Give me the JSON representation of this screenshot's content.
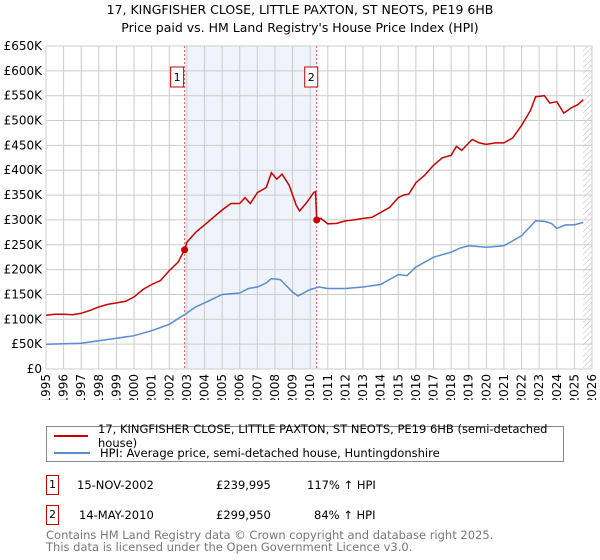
{
  "title": {
    "line1": "17, KINGFISHER CLOSE, LITTLE PAXTON, ST NEOTS, PE19 6HB",
    "line2": "Price paid vs. HM Land Registry's House Price Index (HPI)"
  },
  "chart_data": {
    "type": "line",
    "xlim": [
      1995,
      2026
    ],
    "ylim": [
      0,
      650000
    ],
    "yticks": [
      0,
      50000,
      100000,
      150000,
      200000,
      250000,
      300000,
      350000,
      400000,
      450000,
      500000,
      550000,
      600000,
      650000
    ],
    "ytick_labels": [
      "£0",
      "£50K",
      "£100K",
      "£150K",
      "£200K",
      "£250K",
      "£300K",
      "£350K",
      "£400K",
      "£450K",
      "£500K",
      "£550K",
      "£600K",
      "£650K"
    ],
    "xtick_labels": [
      "1995",
      "1996",
      "1997",
      "1998",
      "1999",
      "2000",
      "2001",
      "2002",
      "2003",
      "2004",
      "2005",
      "2006",
      "2007",
      "2008",
      "2009",
      "2010",
      "2011",
      "2012",
      "2013",
      "2014",
      "2015",
      "2016",
      "2017",
      "2018",
      "2019",
      "2020",
      "2021",
      "2022",
      "2023",
      "2024",
      "2025",
      "2026"
    ],
    "grid": true,
    "shaded_period": [
      2002.87,
      2010.37
    ],
    "future_hatch_from": 2025.5,
    "series": [
      {
        "name": "17, KINGFISHER CLOSE, LITTLE PAXTON, ST NEOTS, PE19 6HB (semi-detached house)",
        "color": "#cc0000",
        "x": [
          1995,
          1995.5,
          1996,
          1996.5,
          1997,
          1997.5,
          1998,
          1998.5,
          1999,
          1999.5,
          2000,
          2000.5,
          2001,
          2001.5,
          2002,
          2002.5,
          2002.87,
          2003,
          2003.5,
          2004,
          2004.5,
          2005,
          2005.5,
          2006,
          2006.3,
          2006.6,
          2007,
          2007.5,
          2007.8,
          2008.1,
          2008.4,
          2008.8,
          2009.2,
          2009.4,
          2009.8,
          2010.2,
          2010.3,
          2010.37,
          2010.6,
          2011,
          2011.5,
          2012,
          2012.5,
          2013,
          2013.5,
          2014,
          2014.5,
          2015,
          2015.3,
          2015.6,
          2016,
          2016.5,
          2017,
          2017.5,
          2018,
          2018.3,
          2018.6,
          2019.2,
          2019.6,
          2020,
          2020.5,
          2021,
          2021.5,
          2022,
          2022.5,
          2022.8,
          2023.3,
          2023.6,
          2024,
          2024.4,
          2024.8,
          2025.2,
          2025.5
        ],
        "y": [
          108000,
          110000,
          110000,
          109000,
          112000,
          118000,
          125000,
          130000,
          133000,
          136000,
          145000,
          160000,
          170000,
          178000,
          198000,
          215000,
          239995,
          255000,
          275000,
          290000,
          305000,
          320000,
          333000,
          333000,
          345000,
          333000,
          355000,
          365000,
          395000,
          382000,
          392000,
          370000,
          330000,
          318000,
          335000,
          355000,
          357000,
          299950,
          303000,
          292000,
          293000,
          298000,
          300000,
          303000,
          305000,
          315000,
          325000,
          345000,
          350000,
          352000,
          375000,
          390000,
          410000,
          425000,
          430000,
          448000,
          440000,
          462000,
          455000,
          452000,
          455000,
          455000,
          465000,
          490000,
          520000,
          548000,
          550000,
          535000,
          538000,
          515000,
          525000,
          532000,
          542000
        ]
      },
      {
        "name": "HPI: Average price, semi-detached house, Huntingdonshire",
        "color": "#5b8bd0",
        "x": [
          1995,
          1996,
          1997,
          1998,
          1999,
          2000,
          2001,
          2002,
          2002.9,
          2003.5,
          2004,
          2005,
          2006,
          2006.5,
          2007,
          2007.5,
          2007.8,
          2008.3,
          2009,
          2009.3,
          2010,
          2010.5,
          2011,
          2012,
          2013,
          2014,
          2015,
          2015.5,
          2016,
          2017,
          2018,
          2018.5,
          2019,
          2020,
          2021,
          2022,
          2022.8,
          2023.3,
          2023.7,
          2024,
          2024.5,
          2025,
          2025.5
        ],
        "y": [
          50000,
          51000,
          52000,
          57000,
          62000,
          67000,
          77000,
          90000,
          110000,
          125000,
          133000,
          150000,
          153000,
          162000,
          165000,
          173000,
          182000,
          180000,
          155000,
          147000,
          160000,
          165000,
          162000,
          162000,
          165000,
          170000,
          190000,
          188000,
          205000,
          225000,
          235000,
          243000,
          248000,
          245000,
          248000,
          268000,
          298000,
          297000,
          293000,
          283000,
          290000,
          290000,
          295000
        ]
      }
    ],
    "sales": [
      {
        "label": "1",
        "x": 2002.87,
        "y": 239995
      },
      {
        "label": "2",
        "x": 2010.37,
        "y": 299950
      }
    ]
  },
  "legend": {
    "property": "17, KINGFISHER CLOSE, LITTLE PAXTON, ST NEOTS, PE19 6HB (semi-detached house)",
    "hpi": "HPI: Average price, semi-detached house, Huntingdonshire"
  },
  "transactions": [
    {
      "num": "1",
      "date": "15-NOV-2002",
      "price": "£239,995",
      "hpi": "117% ↑ HPI"
    },
    {
      "num": "2",
      "date": "14-MAY-2010",
      "price": "£299,950",
      "hpi": "84% ↑ HPI"
    }
  ],
  "footer": {
    "line1": "Contains HM Land Registry data © Crown copyright and database right 2025.",
    "line2": "This data is licensed under the Open Government Licence v3.0."
  }
}
